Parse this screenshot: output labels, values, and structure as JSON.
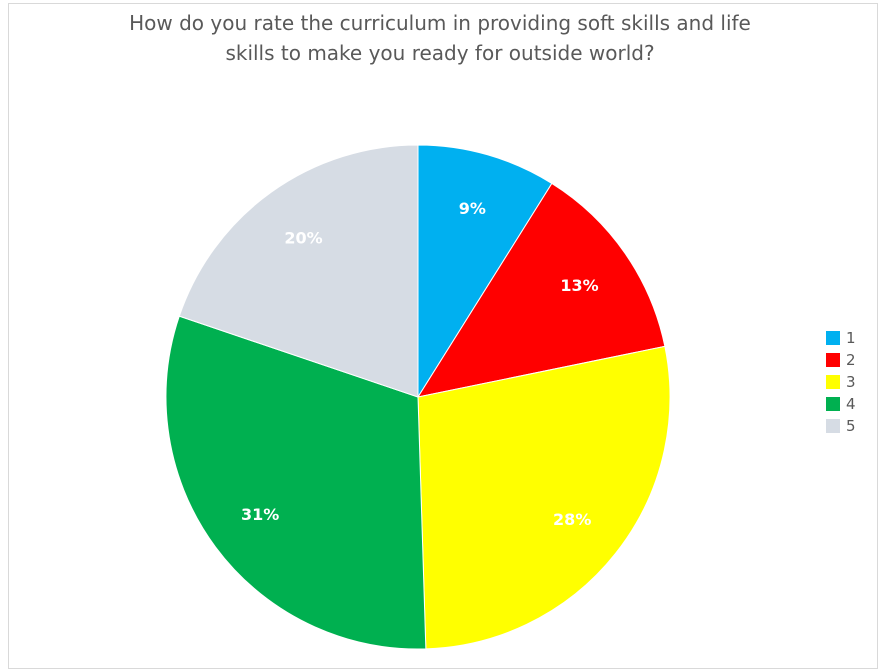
{
  "chart_data": {
    "type": "pie",
    "title": "How do you rate the curriculum in providing soft skills and life skills to make you ready for outside world?",
    "title_lines": [
      "How do you rate the curriculum in providing soft skills and life",
      "skills to make you ready for outside world?"
    ],
    "categories": [
      "1",
      "2",
      "3",
      "4",
      "5"
    ],
    "values": [
      9,
      13,
      28,
      31,
      20
    ],
    "data_labels": [
      "9%",
      "13%",
      "28%",
      "31%",
      "20%"
    ],
    "colors": [
      "#00b0f0",
      "#ff0000",
      "#ffff00",
      "#00b050",
      "#d6dce4"
    ],
    "start_angle": "12 o'clock",
    "direction": "clockwise",
    "legend_position": "right",
    "label_color": "#ffffff"
  }
}
